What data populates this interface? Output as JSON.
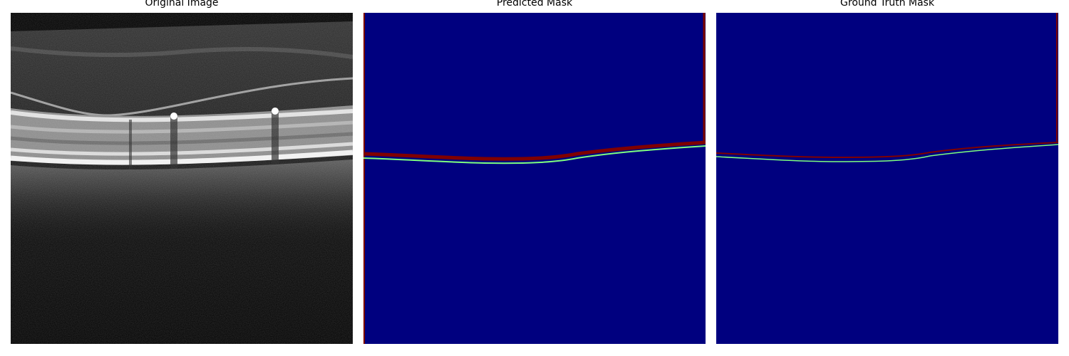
{
  "panels": [
    {
      "title": "Original Image"
    },
    {
      "title": "Predicted Mask"
    },
    {
      "title": "Ground Truth Mask"
    }
  ],
  "colors": {
    "mask_background": "#00007f",
    "boundary_upper": "#7f0000",
    "boundary_lower": "#7fff7f",
    "oct_background": "#000000"
  }
}
